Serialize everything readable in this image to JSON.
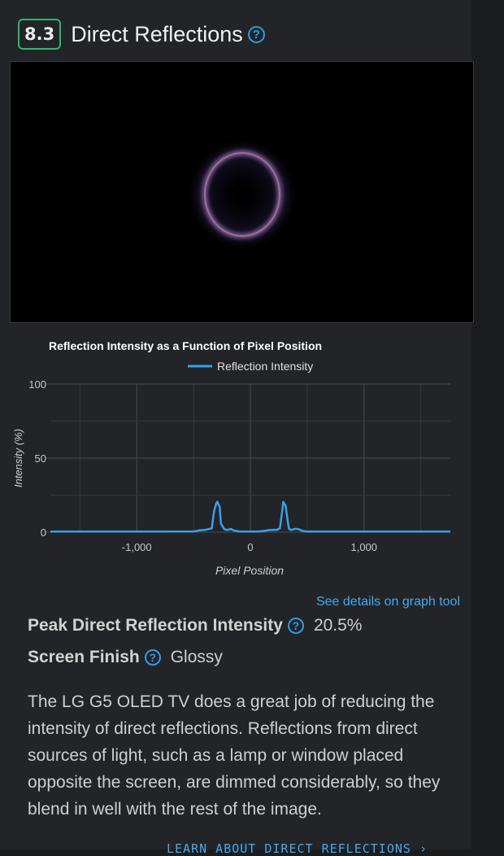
{
  "section": {
    "score": "8.3",
    "title": "Direct Reflections",
    "help_icon": "question-circle-icon"
  },
  "chart_data": {
    "type": "line",
    "title": "Reflection Intensity as a Function of Pixel Position",
    "legend": "top",
    "xlabel": "Pixel Position",
    "ylabel": "Intensity (%)",
    "xlim": [
      -1760,
      1760
    ],
    "ylim": [
      0,
      100
    ],
    "x_ticks": [
      -1000,
      0,
      1000
    ],
    "x_tick_labels": [
      "-1,000",
      "0",
      "1,000"
    ],
    "y_ticks": [
      0,
      50,
      100
    ],
    "y_tick_labels": [
      "0",
      "50",
      "100"
    ],
    "grid": true,
    "series": [
      {
        "name": "Reflection Intensity",
        "color": "#36a2eb",
        "x": [
          -1760,
          -1000,
          -500,
          -470,
          -450,
          -400,
          -340,
          -320,
          -300,
          -290,
          -280,
          -270,
          -260,
          -230,
          -200,
          -170,
          -150,
          -100,
          -50,
          0,
          50,
          100,
          150,
          200,
          230,
          260,
          280,
          290,
          300,
          310,
          330,
          340,
          360,
          400,
          430,
          460,
          500,
          1000,
          1760
        ],
        "y": [
          0.4,
          0.4,
          0.5,
          0.8,
          1.2,
          1.5,
          2.5,
          14,
          19.5,
          20.5,
          18.5,
          17,
          6,
          2,
          1.5,
          2.2,
          1.2,
          0.5,
          0.4,
          0.4,
          0.4,
          0.6,
          1.2,
          1.6,
          1.5,
          2.5,
          14,
          20.5,
          19,
          18,
          7,
          2.2,
          1.5,
          2.3,
          1.8,
          0.8,
          0.4,
          0.4,
          0.4
        ]
      }
    ]
  },
  "graph_link": "See details on graph tool",
  "peak": {
    "label": "Peak Direct Reflection Intensity",
    "value": "20.5%"
  },
  "finish": {
    "label": "Screen Finish",
    "value": "Glossy"
  },
  "description": "The LG G5 OLED TV does a great job of reducing the intensity of direct reflections. Reflections from direct sources of light, such as a lamp or window placed opposite the screen, are dimmed considerably, so they blend in well with the rest of the image.",
  "learn_link": "LEARN ABOUT DIRECT REFLECTIONS ›"
}
